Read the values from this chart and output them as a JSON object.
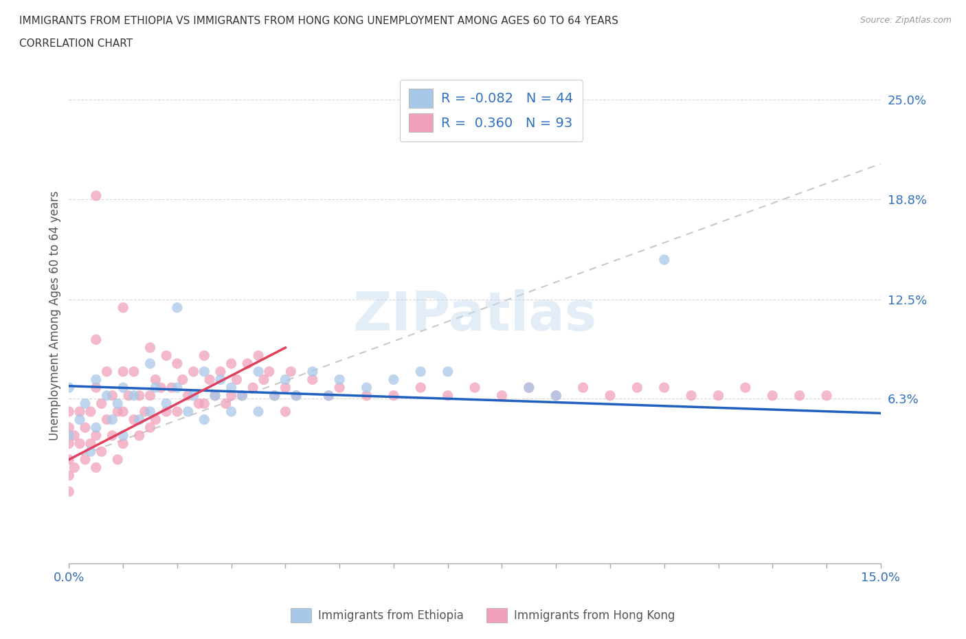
{
  "title_line1": "IMMIGRANTS FROM ETHIOPIA VS IMMIGRANTS FROM HONG KONG UNEMPLOYMENT AMONG AGES 60 TO 64 YEARS",
  "title_line2": "CORRELATION CHART",
  "source": "Source: ZipAtlas.com",
  "ylabel": "Unemployment Among Ages 60 to 64 years",
  "xlim": [
    0.0,
    0.15
  ],
  "ylim": [
    -0.04,
    0.27
  ],
  "ytick_positions": [
    0.063,
    0.125,
    0.188,
    0.25
  ],
  "ytick_labels": [
    "6.3%",
    "12.5%",
    "18.8%",
    "25.0%"
  ],
  "color_ethiopia": "#a8c8e8",
  "color_hk": "#f0a0b8",
  "color_trend_ethiopia": "#2060c0",
  "color_trend_hk": "#e04060",
  "color_dashed": "#c8c8c8",
  "watermark": "ZIPatlas",
  "ethiopia_x": [
    0.0,
    0.0,
    0.002,
    0.003,
    0.004,
    0.005,
    0.005,
    0.007,
    0.008,
    0.009,
    0.01,
    0.01,
    0.012,
    0.013,
    0.015,
    0.015,
    0.016,
    0.018,
    0.02,
    0.02,
    0.022,
    0.023,
    0.025,
    0.025,
    0.027,
    0.028,
    0.03,
    0.03,
    0.032,
    0.035,
    0.035,
    0.038,
    0.04,
    0.042,
    0.045,
    0.048,
    0.05,
    0.055,
    0.06,
    0.065,
    0.07,
    0.085,
    0.09,
    0.11
  ],
  "ethiopia_y": [
    0.07,
    0.04,
    0.05,
    0.06,
    0.03,
    0.075,
    0.045,
    0.065,
    0.05,
    0.06,
    0.07,
    0.04,
    0.065,
    0.05,
    0.085,
    0.055,
    0.07,
    0.06,
    0.12,
    0.07,
    0.055,
    0.065,
    0.08,
    0.05,
    0.065,
    0.075,
    0.07,
    0.055,
    0.065,
    0.08,
    0.055,
    0.065,
    0.075,
    0.065,
    0.08,
    0.065,
    0.075,
    0.07,
    0.075,
    0.08,
    0.08,
    0.07,
    0.065,
    0.15
  ],
  "hk_x": [
    0.0,
    0.0,
    0.0,
    0.0,
    0.0,
    0.0,
    0.001,
    0.001,
    0.002,
    0.002,
    0.003,
    0.003,
    0.004,
    0.004,
    0.005,
    0.005,
    0.005,
    0.005,
    0.005,
    0.006,
    0.006,
    0.007,
    0.007,
    0.008,
    0.008,
    0.009,
    0.009,
    0.01,
    0.01,
    0.01,
    0.01,
    0.011,
    0.012,
    0.012,
    0.013,
    0.013,
    0.014,
    0.015,
    0.015,
    0.015,
    0.016,
    0.016,
    0.017,
    0.018,
    0.018,
    0.019,
    0.02,
    0.02,
    0.021,
    0.022,
    0.023,
    0.024,
    0.025,
    0.025,
    0.026,
    0.027,
    0.028,
    0.029,
    0.03,
    0.03,
    0.031,
    0.032,
    0.033,
    0.034,
    0.035,
    0.036,
    0.037,
    0.038,
    0.04,
    0.04,
    0.041,
    0.042,
    0.045,
    0.048,
    0.05,
    0.055,
    0.06,
    0.065,
    0.07,
    0.075,
    0.08,
    0.085,
    0.09,
    0.095,
    0.1,
    0.105,
    0.11,
    0.115,
    0.12,
    0.125,
    0.13,
    0.135,
    0.14
  ],
  "hk_y": [
    0.035,
    0.025,
    0.045,
    0.015,
    0.055,
    0.005,
    0.04,
    0.02,
    0.035,
    0.055,
    0.025,
    0.045,
    0.035,
    0.055,
    0.19,
    0.1,
    0.07,
    0.04,
    0.02,
    0.06,
    0.03,
    0.05,
    0.08,
    0.04,
    0.065,
    0.025,
    0.055,
    0.12,
    0.08,
    0.055,
    0.035,
    0.065,
    0.08,
    0.05,
    0.065,
    0.04,
    0.055,
    0.095,
    0.065,
    0.045,
    0.075,
    0.05,
    0.07,
    0.09,
    0.055,
    0.07,
    0.085,
    0.055,
    0.075,
    0.065,
    0.08,
    0.06,
    0.09,
    0.06,
    0.075,
    0.065,
    0.08,
    0.06,
    0.085,
    0.065,
    0.075,
    0.065,
    0.085,
    0.07,
    0.09,
    0.075,
    0.08,
    0.065,
    0.07,
    0.055,
    0.08,
    0.065,
    0.075,
    0.065,
    0.07,
    0.065,
    0.065,
    0.07,
    0.065,
    0.07,
    0.065,
    0.07,
    0.065,
    0.07,
    0.065,
    0.07,
    0.07,
    0.065,
    0.065,
    0.07,
    0.065,
    0.065,
    0.065
  ],
  "eth_trend_x": [
    0.0,
    0.15
  ],
  "eth_trend_y": [
    0.071,
    0.054
  ],
  "hk_trend_x": [
    0.0,
    0.04
  ],
  "hk_trend_y": [
    0.025,
    0.095
  ]
}
